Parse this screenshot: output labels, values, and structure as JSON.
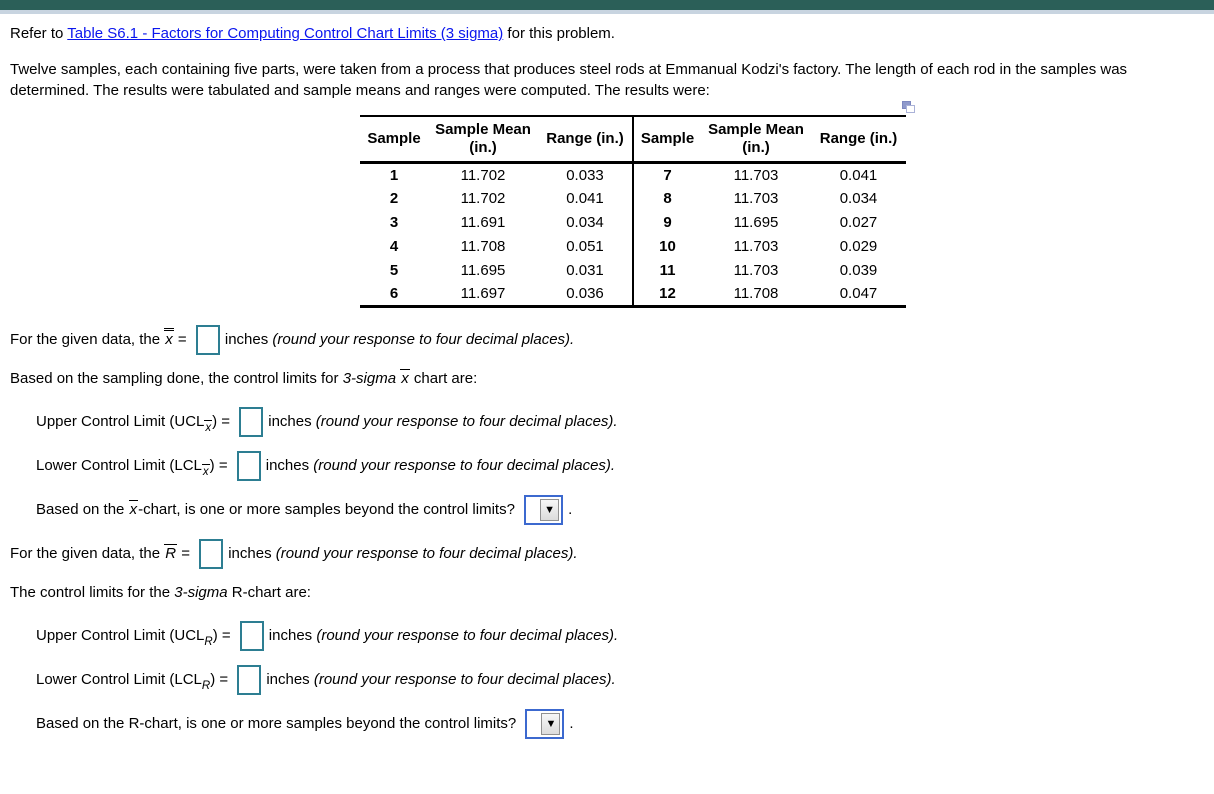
{
  "header": {
    "refer_prefix": "Refer to ",
    "link_text": "Table S6.1 - Factors for Computing Control Chart Limits (3 sigma)",
    "refer_suffix": " for this problem.",
    "intro_text": "Twelve samples, each containing five parts, were taken from a process that produces steel rods at Emmanual Kodzi's factory. The length of each rod in the samples was determined. The results were tabulated and sample means and ranges were computed. The results were:"
  },
  "table": {
    "headers": [
      "Sample",
      "Sample Mean (in.)",
      "Range (in.)",
      "Sample",
      "Sample Mean (in.)",
      "Range (in.)"
    ],
    "rows": [
      [
        "1",
        "11.702",
        "0.033",
        "7",
        "11.703",
        "0.041"
      ],
      [
        "2",
        "11.702",
        "0.041",
        "8",
        "11.703",
        "0.034"
      ],
      [
        "3",
        "11.691",
        "0.034",
        "9",
        "11.695",
        "0.027"
      ],
      [
        "4",
        "11.708",
        "0.051",
        "10",
        "11.703",
        "0.029"
      ],
      [
        "5",
        "11.695",
        "0.031",
        "11",
        "11.703",
        "0.039"
      ],
      [
        "6",
        "11.697",
        "0.036",
        "12",
        "11.708",
        "0.047"
      ]
    ]
  },
  "questions": {
    "xbarbar": {
      "lead": "For the given data, the ",
      "symbol": "x",
      "equals": " = ",
      "unit": "inches ",
      "note": "(round your response to four decimal places)."
    },
    "xbar_heading": {
      "lead": "Based on the sampling done, the control limits for ",
      "sigma": "3-sigma ",
      "symbol": "x",
      "tail": " chart are:"
    },
    "ucl_xbar": {
      "label": "Upper Control Limit (UCL",
      "sub": "x",
      "close": ") = ",
      "unit": "inches ",
      "note": "(round your response to four decimal places)."
    },
    "lcl_xbar": {
      "label": "Lower Control Limit (LCL",
      "sub": "x",
      "close": ") = ",
      "unit": "inches ",
      "note": "(round your response to four decimal places)."
    },
    "xbar_beyond": {
      "lead": "Based on the ",
      "symbol": "x",
      "tail": "-chart, is one or more samples beyond the control limits? ",
      "period": "."
    },
    "rbar": {
      "lead": "For the given data, the ",
      "symbol": "R",
      "equals": " = ",
      "unit": "inches ",
      "note": "(round your response to four decimal places)."
    },
    "r_heading": {
      "lead": "The control limits for the ",
      "sigma": "3-sigma",
      "tail": " R-chart are:"
    },
    "ucl_r": {
      "label": "Upper Control Limit (UCL",
      "sub": "R",
      "close": ") = ",
      "unit": "inches ",
      "note": "(round your response to four decimal places)."
    },
    "lcl_r": {
      "label": "Lower Control Limit (LCL",
      "sub": "R",
      "close": ") = ",
      "unit": "inches ",
      "note": "(round your response to four decimal places)."
    },
    "r_beyond": {
      "lead": "Based on the R-chart, is one or more samples beyond the control limits? ",
      "period": "."
    }
  },
  "inputs": {
    "xbarbar_value": "",
    "ucl_xbar_value": "",
    "lcl_xbar_value": "",
    "rbar_value": "",
    "ucl_r_value": "",
    "lcl_r_value": "",
    "xbar_beyond_selected": "",
    "r_beyond_selected": ""
  },
  "icons": {
    "dropdown_arrow": "▼",
    "popout_table_icon": "overlapping-squares"
  },
  "colors": {
    "top_bar": "#2b5f58",
    "top_strip": "#c8d4e0",
    "link_blue": "#0b16ee",
    "answer_box_border": "#2d7e92",
    "dropdown_border": "#3c69cf"
  }
}
